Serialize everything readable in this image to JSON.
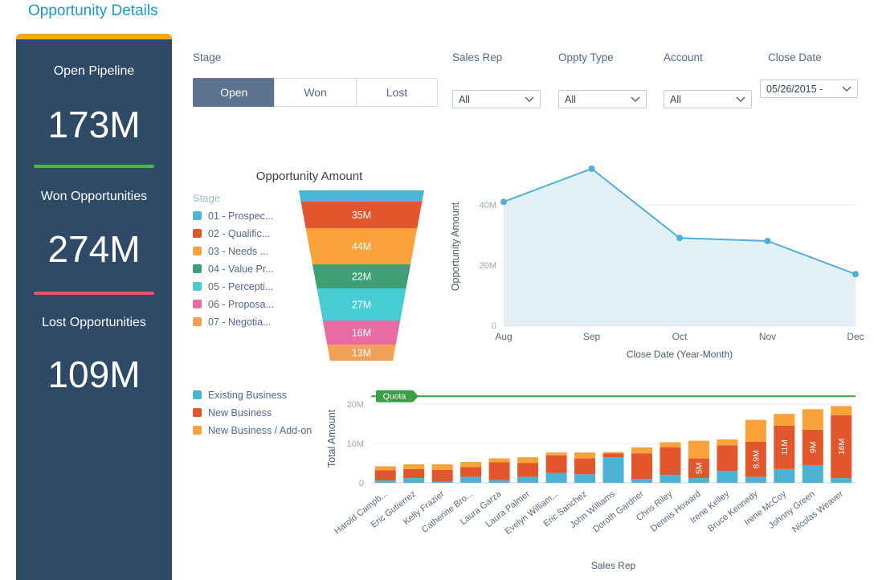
{
  "page": {
    "title": "Opportunity Details"
  },
  "kpis": [
    {
      "label": "Open Pipeline",
      "value": "173M",
      "accent": "#f5a623"
    },
    {
      "label": "Won Opportunities",
      "value": "274M",
      "accent": "#4fb54a"
    },
    {
      "label": "Lost Opportunities",
      "value": "109M",
      "accent": "#e05b5b"
    }
  ],
  "filters": {
    "stage": {
      "label": "Stage",
      "options": [
        "Open",
        "Won",
        "Lost"
      ],
      "selected": "Open"
    },
    "sales_rep": {
      "label": "Sales Rep",
      "value": "All"
    },
    "oppty_type": {
      "label": "Oppty Type",
      "value": "All"
    },
    "account": {
      "label": "Account",
      "value": "All"
    },
    "close_date": {
      "label": "Close Date",
      "value": "05/26/2015 -"
    }
  },
  "colors": {
    "title_blue": "#1b96d1",
    "sidebar_bg": "#2e4a66",
    "active_button": "#5c7391",
    "quota_green": "#3c9e47",
    "line_blue": "#4cb0d8",
    "area_fill": "#e4f0f8"
  },
  "chart_data": [
    {
      "type": "funnel",
      "title": "Opportunity Amount",
      "legend_title": "Stage",
      "stages": [
        {
          "label": "01 - Prospec...",
          "color": "#4bb6d3",
          "value": null,
          "value_label": "",
          "h": 14
        },
        {
          "label": "02 - Qualific...",
          "color": "#e1562c",
          "value": 35,
          "value_label": "35M",
          "h": 33
        },
        {
          "label": "03 - Needs ...",
          "color": "#f9a13a",
          "value": 44,
          "value_label": "44M",
          "h": 45
        },
        {
          "label": "04 - Value Pr...",
          "color": "#3fa076",
          "value": 22,
          "value_label": "22M",
          "h": 30
        },
        {
          "label": "05 - Percepti...",
          "color": "#45ccd4",
          "value": 27,
          "value_label": "27M",
          "h": 40
        },
        {
          "label": "06 - Proposa...",
          "color": "#ea6ba4",
          "value": 16,
          "value_label": "16M",
          "h": 30
        },
        {
          "label": "07 - Negotia...",
          "color": "#f2a055",
          "value": 13,
          "value_label": "13M",
          "h": 20
        }
      ]
    },
    {
      "type": "area",
      "title": "",
      "x": [
        "Aug",
        "Sep",
        "Oct",
        "Nov",
        "Dec"
      ],
      "values": [
        41,
        52,
        29,
        28,
        17
      ],
      "ylabel": "Opportunity Amount",
      "xlabel": "Close Date (Year-Month)",
      "yticks": [
        0,
        20,
        40
      ],
      "ytick_labels": [
        "0",
        "20M",
        "40M"
      ],
      "ymax": 53
    },
    {
      "type": "stacked-bar",
      "title": "",
      "ylabel": "Total Amount",
      "xlabel": "Sales Rep",
      "quota": {
        "label": "Quota",
        "value": 22
      },
      "yticks": [
        0,
        10,
        20
      ],
      "ytick_labels": [
        "0",
        "10M",
        "20M"
      ],
      "ymax": 25,
      "categories": [
        "Harold Campb...",
        "Eric Gutierrez",
        "Kelly Frazier",
        "Catherine Bro...",
        "Laura Garza",
        "Laura Palmer",
        "Evelyn William...",
        "Eric Sanchez",
        "John Williams",
        "Doroth Gardner",
        "Chris Riley",
        "Dennis Howard",
        "Irene Kelley",
        "Bruce Kennedy",
        "Irene McCoy",
        "Johnny Green",
        "Nicolas Weaver"
      ],
      "series": [
        {
          "name": "Existing Business",
          "color": "#4bb2d4",
          "values": [
            0.6,
            1.2,
            0.3,
            1.5,
            0.7,
            1.5,
            2.5,
            2.2,
            6.5,
            1.0,
            2.0,
            1.2,
            3.0,
            1.5,
            3.5,
            4.5,
            1.2
          ]
        },
        {
          "name": "New Business",
          "color": "#e1562c",
          "values": [
            2.6,
            2.3,
            3.0,
            2.5,
            4.5,
            3.5,
            4.5,
            4.0,
            1.0,
            6.5,
            7.0,
            5.0,
            6.5,
            8.9,
            11.0,
            9.0,
            16.0
          ],
          "bar_labels": [
            "",
            "",
            "",
            "",
            "",
            "",
            "",
            "",
            "",
            "",
            "",
            "5M",
            "",
            "8.9M",
            "11M",
            "9M",
            "16M"
          ]
        },
        {
          "name": "New Business / Add-on",
          "color": "#f9a13a",
          "values": [
            1.0,
            1.2,
            1.4,
            1.3,
            1.0,
            1.5,
            0.7,
            1.5,
            0.3,
            1.5,
            1.3,
            4.5,
            1.5,
            5.6,
            3.0,
            5.2,
            2.3
          ]
        }
      ]
    }
  ]
}
